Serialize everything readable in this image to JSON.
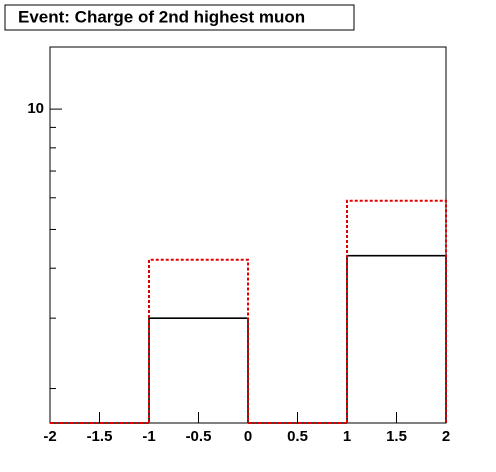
{
  "chart_data": {
    "type": "histogram",
    "title": "Event: Charge of 2nd highest muon",
    "bins": [
      -2,
      -1,
      0,
      1,
      2
    ],
    "series": [
      {
        "color": "#000000",
        "line_style": "solid",
        "values": [
          0,
          3.0,
          0,
          4.3
        ]
      },
      {
        "color": "#e00000",
        "line_style": "dashed",
        "values": [
          0,
          4.2,
          0,
          5.9
        ]
      }
    ],
    "xlim": [
      -2,
      2
    ],
    "xticks": [
      -2,
      -1.5,
      -1,
      -0.5,
      0,
      0.5,
      1,
      1.5,
      2
    ],
    "ylim": [
      1.64,
      14.3
    ],
    "yticks": [
      10
    ],
    "yminor_ticks": [
      2,
      3,
      4,
      5,
      6,
      7,
      8,
      9
    ],
    "log_y": true,
    "grid": false
  }
}
